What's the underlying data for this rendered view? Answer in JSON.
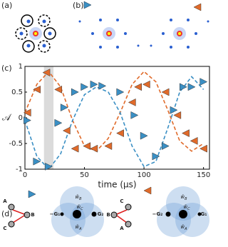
{
  "panels": {
    "a": "(a)",
    "b": "(b)",
    "c": "(c)",
    "d": "(d)"
  },
  "chart_data": {
    "type": "scatter",
    "xlabel": "time (μs)",
    "ylabel": "𝒜",
    "xlim": [
      0,
      155
    ],
    "ylim": [
      -1,
      1
    ],
    "xticks": [
      0,
      50,
      100,
      150
    ],
    "yticks": [
      -1,
      -0.5,
      0,
      0.5,
      1
    ],
    "shaded_region": [
      16,
      24
    ],
    "series": [
      {
        "color": "#e06a2a",
        "marker": "left",
        "x": [
          2,
          10,
          18,
          28,
          35,
          42,
          52,
          58,
          70,
          80,
          90,
          95,
          102,
          118,
          128,
          135,
          142,
          150
        ],
        "values": [
          0.1,
          0.55,
          0.88,
          0.55,
          -0.25,
          -0.6,
          -0.55,
          -0.6,
          -0.55,
          -0.3,
          0.3,
          0.6,
          0.65,
          0.5,
          0.05,
          -0.3,
          -0.45,
          -0.6
        ]
      },
      {
        "color": "#3a8fc4",
        "marker": "right",
        "x": [
          2,
          10,
          20,
          28,
          33,
          42,
          50,
          58,
          65,
          80,
          92,
          100,
          110,
          118,
          125,
          133,
          140,
          150
        ],
        "values": [
          -0.05,
          -0.85,
          -0.95,
          -0.1,
          0.2,
          0.5,
          0.6,
          0.65,
          0.62,
          0.5,
          0.05,
          -0.35,
          -0.75,
          -0.55,
          0.15,
          0.6,
          0.6,
          0.7
        ]
      }
    ],
    "fits": [
      {
        "color": "#e06a2a",
        "x": [
          0,
          10,
          20,
          30,
          40,
          50,
          60,
          70,
          80,
          90,
          100,
          110,
          120,
          130,
          140,
          150
        ],
        "values": [
          0.1,
          0.65,
          0.9,
          0.6,
          -0.05,
          -0.55,
          -0.65,
          -0.4,
          0.1,
          0.65,
          0.9,
          0.7,
          0.15,
          -0.45,
          -0.65,
          -0.5
        ]
      },
      {
        "color": "#3a8fc4",
        "x": [
          0,
          10,
          20,
          30,
          40,
          50,
          60,
          70,
          80,
          90,
          100,
          110,
          120,
          130,
          140,
          150
        ],
        "values": [
          -0.05,
          -0.75,
          -1,
          -0.7,
          -0.05,
          0.45,
          0.6,
          0.5,
          0.1,
          -0.55,
          -0.95,
          -0.85,
          -0.2,
          0.5,
          0.8,
          0.55
        ]
      }
    ]
  },
  "panel_d": {
    "left": {
      "nodes": [
        "A",
        "B",
        "C"
      ],
      "g_left": "−G₁",
      "g_right": "G₂",
      "w": [
        {
          "main": "w̃",
          "sub": "B"
        },
        {
          "main": "w̃",
          "sub": "C"
        },
        {
          "main": "w̃",
          "sub": "A"
        }
      ]
    },
    "right": {
      "nodes": [
        "A",
        "B",
        "C"
      ],
      "g_left": "−G₂",
      "g_right": "G₁",
      "w": [
        {
          "main": "w̃",
          "sub": "A"
        },
        {
          "main": "w̃",
          "sub": "C"
        },
        {
          "main": "w̃",
          "sub": "B"
        }
      ]
    }
  }
}
